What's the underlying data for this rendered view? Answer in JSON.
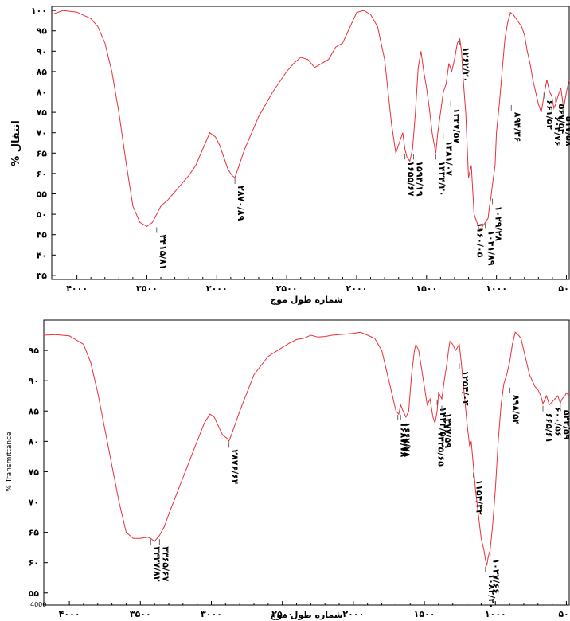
{
  "chart_data": [
    {
      "type": "line",
      "ylabel": "% Transmittance",
      "xlabel": "شماره طول موج",
      "x_reversed": true,
      "xlim": [
        4180,
        480
      ],
      "ylim": [
        34,
        101
      ],
      "xticks": [
        4000,
        3500,
        3000,
        2500,
        2000,
        1500,
        1000,
        500
      ],
      "xtick_labels": [
        "۴۰۰۰",
        "۳۵۰۰",
        "۳۰۰۰",
        "۲۵۰۰",
        "۲۰۰۰",
        "۱۵۰۰",
        "۱۰۰۰",
        "۵۰۰"
      ],
      "yticks": [
        35,
        40,
        45,
        50,
        55,
        60,
        65,
        70,
        75,
        80,
        85,
        90,
        95,
        100
      ],
      "ytick_labels": [
        "۳۵",
        "۴۰",
        "۴۵",
        "۵۰",
        "۵۵",
        "۶۰",
        "۶۵",
        "۷۰",
        "۷۵",
        "۸۰",
        "۸۵",
        "۹۰",
        "۹۵",
        "۱۰۰"
      ],
      "line_color": "#e8303a",
      "series": [
        {
          "x": [
            4180,
            4100,
            4000,
            3900,
            3850,
            3800,
            3750,
            3700,
            3650,
            3600,
            3550,
            3500,
            3460,
            3430,
            3400,
            3350,
            3300,
            3250,
            3200,
            3150,
            3100,
            3050,
            3010,
            2980,
            2950,
            2920,
            2890,
            2870,
            2850,
            2800,
            2750,
            2700,
            2600,
            2500,
            2450,
            2400,
            2350,
            2300,
            2250,
            2200,
            2150,
            2100,
            2000,
            1950,
            1900,
            1850,
            1800,
            1750,
            1720,
            1690,
            1670,
            1655,
            1640,
            1620,
            1600,
            1580,
            1560,
            1540,
            1520,
            1500,
            1480,
            1460,
            1440,
            1434,
            1420,
            1400,
            1380,
            1360,
            1340,
            1320,
            1300,
            1280,
            1262,
            1250,
            1240,
            1220,
            1200,
            1180,
            1160,
            1140,
            1120,
            1100,
            1080,
            1060,
            1050,
            1040,
            1030,
            1010,
            1000,
            980,
            960,
            940,
            920,
            900,
            880,
            860,
            840,
            820,
            800,
            780,
            760,
            740,
            720,
            700,
            680,
            661,
            640,
            620,
            604,
            590,
            577,
            560,
            540,
            520,
            500,
            480
          ],
          "y": [
            99,
            100,
            99.6,
            98,
            96,
            92,
            85,
            75,
            63,
            52,
            48,
            47,
            48,
            50,
            52,
            53.5,
            55.5,
            57.5,
            59.5,
            62,
            66,
            70,
            69,
            67,
            64,
            61,
            59.5,
            59,
            61,
            66,
            70,
            74,
            80,
            85,
            87,
            88.5,
            88,
            86,
            87,
            88,
            91,
            92,
            99.5,
            100,
            99,
            96,
            88,
            72,
            65,
            68,
            70,
            66,
            64,
            63,
            66,
            75,
            86,
            90,
            85,
            81,
            76,
            70,
            66,
            65,
            70,
            75,
            80,
            82,
            87,
            85,
            88,
            92,
            93,
            90,
            84,
            75,
            59,
            62,
            50,
            48,
            46,
            47,
            48,
            49,
            52,
            54,
            57,
            62,
            70,
            77,
            85,
            93,
            97,
            99.5,
            99,
            98,
            97,
            96,
            94,
            90,
            87,
            83,
            80,
            77,
            75,
            79,
            83,
            80,
            79,
            76,
            77,
            79,
            81,
            76,
            80,
            83
          ]
        }
      ],
      "peak_labels": [
        {
          "text": "۳۴۱۵/۸۱",
          "x": 3430,
          "y": 47
        },
        {
          "text": "۲۸۷۰/۸۹",
          "x": 2870,
          "y": 59
        },
        {
          "text": "۱۶۵۵/۶۷",
          "x": 1655,
          "y": 65
        },
        {
          "text": "۱۵۹۳/۱۹",
          "x": 1593,
          "y": 65
        },
        {
          "text": "۱۴۳۴/۲۰",
          "x": 1434,
          "y": 65
        },
        {
          "text": "۱۳۸۱/۰۷",
          "x": 1381,
          "y": 70
        },
        {
          "text": "۱۳۲۷/۵۷",
          "x": 1327,
          "y": 78
        },
        {
          "text": "۱۲۶۲/۲۰",
          "x": 1262,
          "y": 93
        },
        {
          "text": "۱۱۶۰/۰۵",
          "x": 1160,
          "y": 50
        },
        {
          "text": "۱۰۴۱/۸۹",
          "x": 1080,
          "y": 48
        },
        {
          "text": "۱۰۲۹/۲۸",
          "x": 1029,
          "y": 54
        },
        {
          "text": "۸۹۴/۳۶",
          "x": 894,
          "y": 77
        },
        {
          "text": "۶۶۱/۵۲",
          "x": 661,
          "y": 80
        },
        {
          "text": "۶۰۴/۷۶",
          "x": 604,
          "y": 76
        },
        {
          "text": "۵۶۷/۵۴",
          "x": 577,
          "y": 79
        },
        {
          "text": "۵۱۷/۵۸",
          "x": 525,
          "y": 76
        }
      ]
    },
    {
      "type": "line",
      "ylabel": "% Transmittance",
      "xlabel": "شماره طول موج",
      "x_reversed": true,
      "xlim": [
        4180,
        480
      ],
      "ylim": [
        53,
        100
      ],
      "corner_label": "4000",
      "xticks": [
        4000,
        3500,
        3000,
        2500,
        2000,
        1500,
        1000,
        500
      ],
      "xtick_labels": [
        "۴۰۰۰",
        "۳۵۰۰",
        "۳۰۰۰",
        "۲۵۰۰",
        "۲۰۰۰",
        "۱۵۰۰",
        "۱۰۰۰",
        "۵۰۰"
      ],
      "yticks": [
        55,
        60,
        65,
        70,
        75,
        80,
        85,
        90,
        95
      ],
      "ytick_labels": [
        "۵۵",
        "۶۰",
        "۶۵",
        "۷۰",
        "۷۵",
        "۸۰",
        "۸۵",
        "۹۰",
        "۹۵"
      ],
      "line_color": "#e8303a",
      "series": [
        {
          "x": [
            4180,
            4100,
            4000,
            3900,
            3850,
            3800,
            3750,
            3700,
            3650,
            3600,
            3550,
            3500,
            3450,
            3427,
            3400,
            3365,
            3330,
            3300,
            3250,
            3200,
            3150,
            3100,
            3050,
            3010,
            2980,
            2950,
            2920,
            2890,
            2876,
            2860,
            2800,
            2750,
            2700,
            2600,
            2500,
            2450,
            2400,
            2350,
            2300,
            2250,
            2200,
            2150,
            2100,
            2000,
            1950,
            1900,
            1850,
            1800,
            1750,
            1700,
            1680,
            1667,
            1650,
            1630,
            1610,
            1590,
            1570,
            1560,
            1540,
            1520,
            1500,
            1480,
            1460,
            1440,
            1425,
            1410,
            1400,
            1377,
            1360,
            1340,
            1330,
            1320,
            1300,
            1280,
            1254,
            1240,
            1220,
            1200,
            1180,
            1170,
            1155,
            1140,
            1120,
            1100,
            1080,
            1070,
            1060,
            1050,
            1037,
            1020,
            1000,
            980,
            960,
            940,
            920,
            900,
            880,
            860,
            840,
            820,
            800,
            780,
            760,
            740,
            720,
            700,
            680,
            665,
            640,
            620,
            600,
            580,
            560,
            543,
            530,
            510,
            500,
            480
          ],
          "y": [
            97.5,
            97.6,
            97.4,
            96,
            93,
            88,
            82,
            76,
            70,
            65,
            64,
            64,
            64.2,
            64,
            63.5,
            64.5,
            66,
            68,
            71,
            74,
            77,
            80,
            83,
            84.5,
            84,
            82.5,
            81,
            80.5,
            80,
            81,
            85,
            88,
            91,
            94,
            95.5,
            96.2,
            96.8,
            97,
            97.5,
            97.2,
            97.3,
            97.5,
            97.6,
            97.8,
            98,
            97.5,
            97,
            95,
            90,
            85,
            84.5,
            86,
            85,
            84,
            85,
            91,
            95,
            96,
            95,
            92,
            89,
            86,
            87,
            84,
            83,
            85,
            88,
            87,
            90,
            93,
            95,
            96.5,
            96,
            95,
            96,
            93,
            88,
            83,
            79,
            80,
            76,
            72,
            68,
            64,
            62,
            60.5,
            59.5,
            61,
            62,
            66,
            72,
            80,
            86,
            89.5,
            91,
            93,
            96,
            98,
            97.6,
            97,
            95,
            93,
            91,
            90,
            89,
            88.5,
            87.5,
            86.2,
            87.5,
            86,
            86.5,
            87,
            87.5,
            86.3,
            87,
            87.5,
            88,
            87.5
          ]
        }
      ],
      "peak_labels": [
        {
          "text": "۳۴۲۷/۸۲",
          "x": 3427,
          "y": 64
        },
        {
          "text": "۳۳۶۵/۶۷",
          "x": 3365,
          "y": 64
        },
        {
          "text": "۲۸۷۶/۶۴",
          "x": 2876,
          "y": 80
        },
        {
          "text": "۱۶۸۷/۷۸",
          "x": 1687,
          "y": 84.5
        },
        {
          "text": "۱۶۶۷/۷۸",
          "x": 1667,
          "y": 84.5
        },
        {
          "text": "۱۴۲۵/۶۵",
          "x": 1425,
          "y": 83
        },
        {
          "text": "۱۴۲۳/۵۰",
          "x": 1410,
          "y": 87
        },
        {
          "text": "۱۳۷۷/۵۹",
          "x": 1377,
          "y": 86
        },
        {
          "text": "۱۲۵۴/۰۳",
          "x": 1254,
          "y": 93
        },
        {
          "text": "۱۱۵۴/۳۲",
          "x": 1155,
          "y": 75
        },
        {
          "text": "۱۰۸۲/۲۰",
          "x": 1070,
          "y": 59.5
        },
        {
          "text": "۱۰۳۷/۶۶",
          "x": 1037,
          "y": 62
        },
        {
          "text": "۸۹۸/۵۴",
          "x": 898,
          "y": 89
        },
        {
          "text": "۶۶۵/۶۱",
          "x": 665,
          "y": 86
        },
        {
          "text": "۶۰۰/۵۶",
          "x": 600,
          "y": 87
        },
        {
          "text": "۵۴۳/۵۹",
          "x": 543,
          "y": 86.5
        }
      ]
    }
  ],
  "top_panel": {
    "ylabel": "% انتقال"
  },
  "bottom_panel": {
    "ylabel": "% Transmittance"
  }
}
